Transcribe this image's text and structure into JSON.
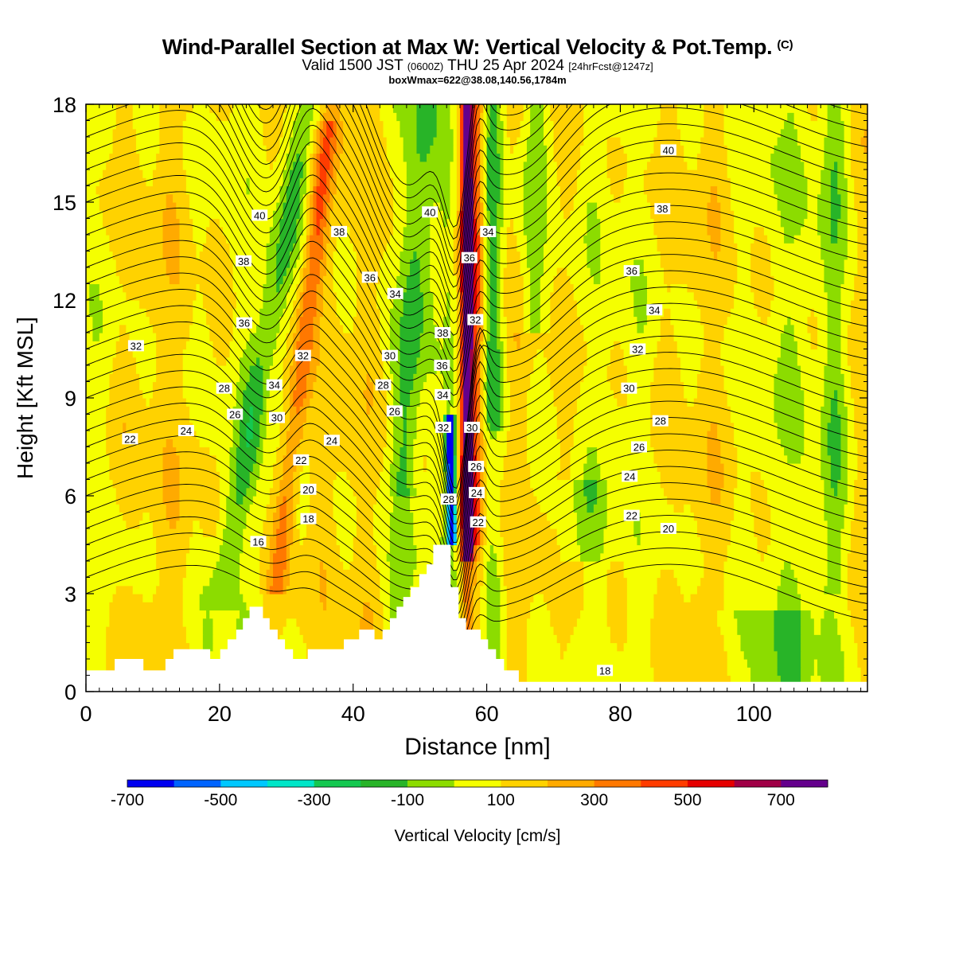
{
  "chart_data": {
    "type": "heatmap",
    "title": "Wind-Parallel Section at Max W: Vertical Velocity & Pot.Temp.",
    "copyright_mark": "(C)",
    "subtitle": {
      "valid_prefix": "Valid 1500 JST",
      "utc": "(0600Z)",
      "date": "THU 25 Apr 2024",
      "forecast": "[24hrFcst@1247z]"
    },
    "box_info": "boxWmax=622@38.08,140.56,1784m",
    "xlabel": "Distance [nm]",
    "ylabel": "Height [Kft MSL]",
    "xlim": [
      0,
      117
    ],
    "ylim": [
      0,
      18
    ],
    "x_ticks": [
      0,
      20,
      40,
      60,
      80,
      100
    ],
    "y_ticks": [
      0,
      3,
      6,
      9,
      12,
      15,
      18
    ],
    "terrain_kft": [
      [
        0,
        0.65
      ],
      [
        4.3,
        0.65
      ],
      [
        4.3,
        1.0
      ],
      [
        8.6,
        1.0
      ],
      [
        8.6,
        0.65
      ],
      [
        11.9,
        0.65
      ],
      [
        11.9,
        1.0
      ],
      [
        13.1,
        1.0
      ],
      [
        13.1,
        1.3
      ],
      [
        18.6,
        1.3
      ],
      [
        18.6,
        1.0
      ],
      [
        20.1,
        1.0
      ],
      [
        20.1,
        1.3
      ],
      [
        21.2,
        1.3
      ],
      [
        21.2,
        1.6
      ],
      [
        22.5,
        1.6
      ],
      [
        22.5,
        1.9
      ],
      [
        23.5,
        1.9
      ],
      [
        23.5,
        2.25
      ],
      [
        24.5,
        2.25
      ],
      [
        24.5,
        2.6
      ],
      [
        26.5,
        2.6
      ],
      [
        26.5,
        2.25
      ],
      [
        27.5,
        2.25
      ],
      [
        27.5,
        1.9
      ],
      [
        28.7,
        1.9
      ],
      [
        28.7,
        1.6
      ],
      [
        29.8,
        1.6
      ],
      [
        29.8,
        1.3
      ],
      [
        31.0,
        1.3
      ],
      [
        31.0,
        1.0
      ],
      [
        33.2,
        1.0
      ],
      [
        33.2,
        1.3
      ],
      [
        38.6,
        1.3
      ],
      [
        38.6,
        1.6
      ],
      [
        40.9,
        1.6
      ],
      [
        40.9,
        1.9
      ],
      [
        43.2,
        1.9
      ],
      [
        43.2,
        1.6
      ],
      [
        44.4,
        1.6
      ],
      [
        44.4,
        1.9
      ],
      [
        45.5,
        1.9
      ],
      [
        45.5,
        2.25
      ],
      [
        46.5,
        2.25
      ],
      [
        46.5,
        2.6
      ],
      [
        47.5,
        2.6
      ],
      [
        47.5,
        2.9
      ],
      [
        48.6,
        2.9
      ],
      [
        48.6,
        3.2
      ],
      [
        49.9,
        3.2
      ],
      [
        49.9,
        3.6
      ],
      [
        51.0,
        3.6
      ],
      [
        51.0,
        3.9
      ],
      [
        52.0,
        3.9
      ],
      [
        52.0,
        4.5
      ],
      [
        54.6,
        4.5
      ],
      [
        54.6,
        3.2
      ],
      [
        55.8,
        3.2
      ],
      [
        55.8,
        2.25
      ],
      [
        56.9,
        2.25
      ],
      [
        56.9,
        1.9
      ],
      [
        59.1,
        1.9
      ],
      [
        59.1,
        1.6
      ],
      [
        60.2,
        1.6
      ],
      [
        60.2,
        1.3
      ],
      [
        61.4,
        1.3
      ],
      [
        61.4,
        1.0
      ],
      [
        62.6,
        1.0
      ],
      [
        62.6,
        0.65
      ],
      [
        64.8,
        0.65
      ],
      [
        64.8,
        0.3
      ],
      [
        117,
        0.3
      ]
    ],
    "wmax_column_nm": 57,
    "colorbar": {
      "label": "Vertical Velocity [cm/s]",
      "tick_labels": [
        "-700",
        "-500",
        "-300",
        "-100",
        "100",
        "300",
        "500",
        "700"
      ],
      "levels": [
        -800,
        -700,
        -600,
        -500,
        -400,
        -300,
        -200,
        -100,
        0,
        100,
        200,
        300,
        400,
        500,
        600,
        700,
        800
      ],
      "colors": [
        "#0000f0",
        "#0064ff",
        "#00c8ff",
        "#00e6c8",
        "#14c850",
        "#28b428",
        "#8cdc00",
        "#f5ff00",
        "#ffd200",
        "#ffaa00",
        "#ff7800",
        "#ff3c00",
        "#e60000",
        "#a00046",
        "#64008c"
      ]
    },
    "theta_labels": [
      {
        "text": "22",
        "x": 6.6,
        "y": 7.75
      },
      {
        "text": "24",
        "x": 15,
        "y": 8.0
      },
      {
        "text": "16",
        "x": 25.8,
        "y": 4.6
      },
      {
        "text": "28",
        "x": 20.7,
        "y": 9.3
      },
      {
        "text": "26",
        "x": 22.3,
        "y": 8.5
      },
      {
        "text": "32",
        "x": 7.5,
        "y": 10.6
      },
      {
        "text": "36",
        "x": 23.7,
        "y": 11.3
      },
      {
        "text": "38",
        "x": 23.6,
        "y": 13.2
      },
      {
        "text": "40",
        "x": 26,
        "y": 14.6
      },
      {
        "text": "34",
        "x": 28.2,
        "y": 9.4
      },
      {
        "text": "30",
        "x": 28.6,
        "y": 8.4
      },
      {
        "text": "32",
        "x": 32.5,
        "y": 10.3
      },
      {
        "text": "22",
        "x": 32.2,
        "y": 7.1
      },
      {
        "text": "20",
        "x": 33.3,
        "y": 6.2
      },
      {
        "text": "18",
        "x": 33.3,
        "y": 5.3
      },
      {
        "text": "24",
        "x": 36.8,
        "y": 7.7
      },
      {
        "text": "38",
        "x": 37.9,
        "y": 14.1
      },
      {
        "text": "36",
        "x": 42.5,
        "y": 12.7
      },
      {
        "text": "30",
        "x": 45.5,
        "y": 10.3
      },
      {
        "text": "28",
        "x": 44.5,
        "y": 9.4
      },
      {
        "text": "26",
        "x": 46.2,
        "y": 8.6
      },
      {
        "text": "34",
        "x": 46.3,
        "y": 12.2
      },
      {
        "text": "40",
        "x": 51.5,
        "y": 14.7
      },
      {
        "text": "38",
        "x": 53.4,
        "y": 11.0
      },
      {
        "text": "36",
        "x": 53.3,
        "y": 10.0
      },
      {
        "text": "34",
        "x": 53.4,
        "y": 9.1
      },
      {
        "text": "32",
        "x": 53.5,
        "y": 8.1
      },
      {
        "text": "28",
        "x": 54.3,
        "y": 5.9
      },
      {
        "text": "36",
        "x": 57.4,
        "y": 13.3
      },
      {
        "text": "32",
        "x": 58.3,
        "y": 11.4
      },
      {
        "text": "34",
        "x": 60.2,
        "y": 14.1
      },
      {
        "text": "30",
        "x": 57.8,
        "y": 8.1
      },
      {
        "text": "26",
        "x": 58.4,
        "y": 6.9
      },
      {
        "text": "24",
        "x": 58.5,
        "y": 6.1
      },
      {
        "text": "22",
        "x": 58.7,
        "y": 5.2
      },
      {
        "text": "40",
        "x": 87.2,
        "y": 16.6
      },
      {
        "text": "38",
        "x": 86.3,
        "y": 14.8
      },
      {
        "text": "36",
        "x": 81.7,
        "y": 12.9
      },
      {
        "text": "34",
        "x": 85.1,
        "y": 11.7
      },
      {
        "text": "32",
        "x": 82.6,
        "y": 10.5
      },
      {
        "text": "30",
        "x": 81.3,
        "y": 9.3
      },
      {
        "text": "28",
        "x": 86,
        "y": 8.3
      },
      {
        "text": "26",
        "x": 82.8,
        "y": 7.5
      },
      {
        "text": "24",
        "x": 81.4,
        "y": 6.6
      },
      {
        "text": "22",
        "x": 81.7,
        "y": 5.4
      },
      {
        "text": "20",
        "x": 87.2,
        "y": 5.0
      },
      {
        "text": "18",
        "x": 77.7,
        "y": 0.65
      }
    ],
    "grid": false
  }
}
